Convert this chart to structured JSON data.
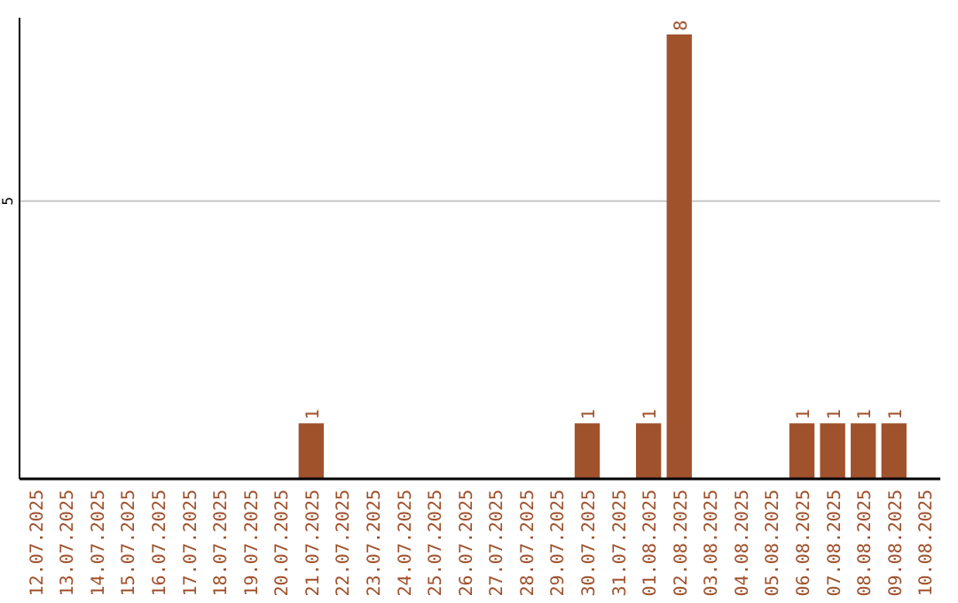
{
  "chart_data": {
    "type": "bar",
    "categories": [
      "12.07.2025",
      "13.07.2025",
      "14.07.2025",
      "15.07.2025",
      "16.07.2025",
      "17.07.2025",
      "18.07.2025",
      "19.07.2025",
      "20.07.2025",
      "21.07.2025",
      "22.07.2025",
      "23.07.2025",
      "24.07.2025",
      "25.07.2025",
      "26.07.2025",
      "27.07.2025",
      "28.07.2025",
      "29.07.2025",
      "30.07.2025",
      "31.07.2025",
      "01.08.2025",
      "02.08.2025",
      "03.08.2025",
      "04.08.2025",
      "05.08.2025",
      "06.08.2025",
      "07.08.2025",
      "08.08.2025",
      "09.08.2025",
      "10.08.2025"
    ],
    "values": [
      null,
      null,
      null,
      null,
      null,
      null,
      null,
      null,
      null,
      1,
      null,
      null,
      null,
      null,
      null,
      null,
      null,
      null,
      1,
      null,
      1,
      8,
      null,
      null,
      null,
      1,
      1,
      1,
      1,
      null
    ],
    "color": "#a0522d",
    "ylim": [
      0,
      8.3
    ],
    "yticks": [
      5
    ],
    "grid": "y",
    "data_labels": true
  }
}
